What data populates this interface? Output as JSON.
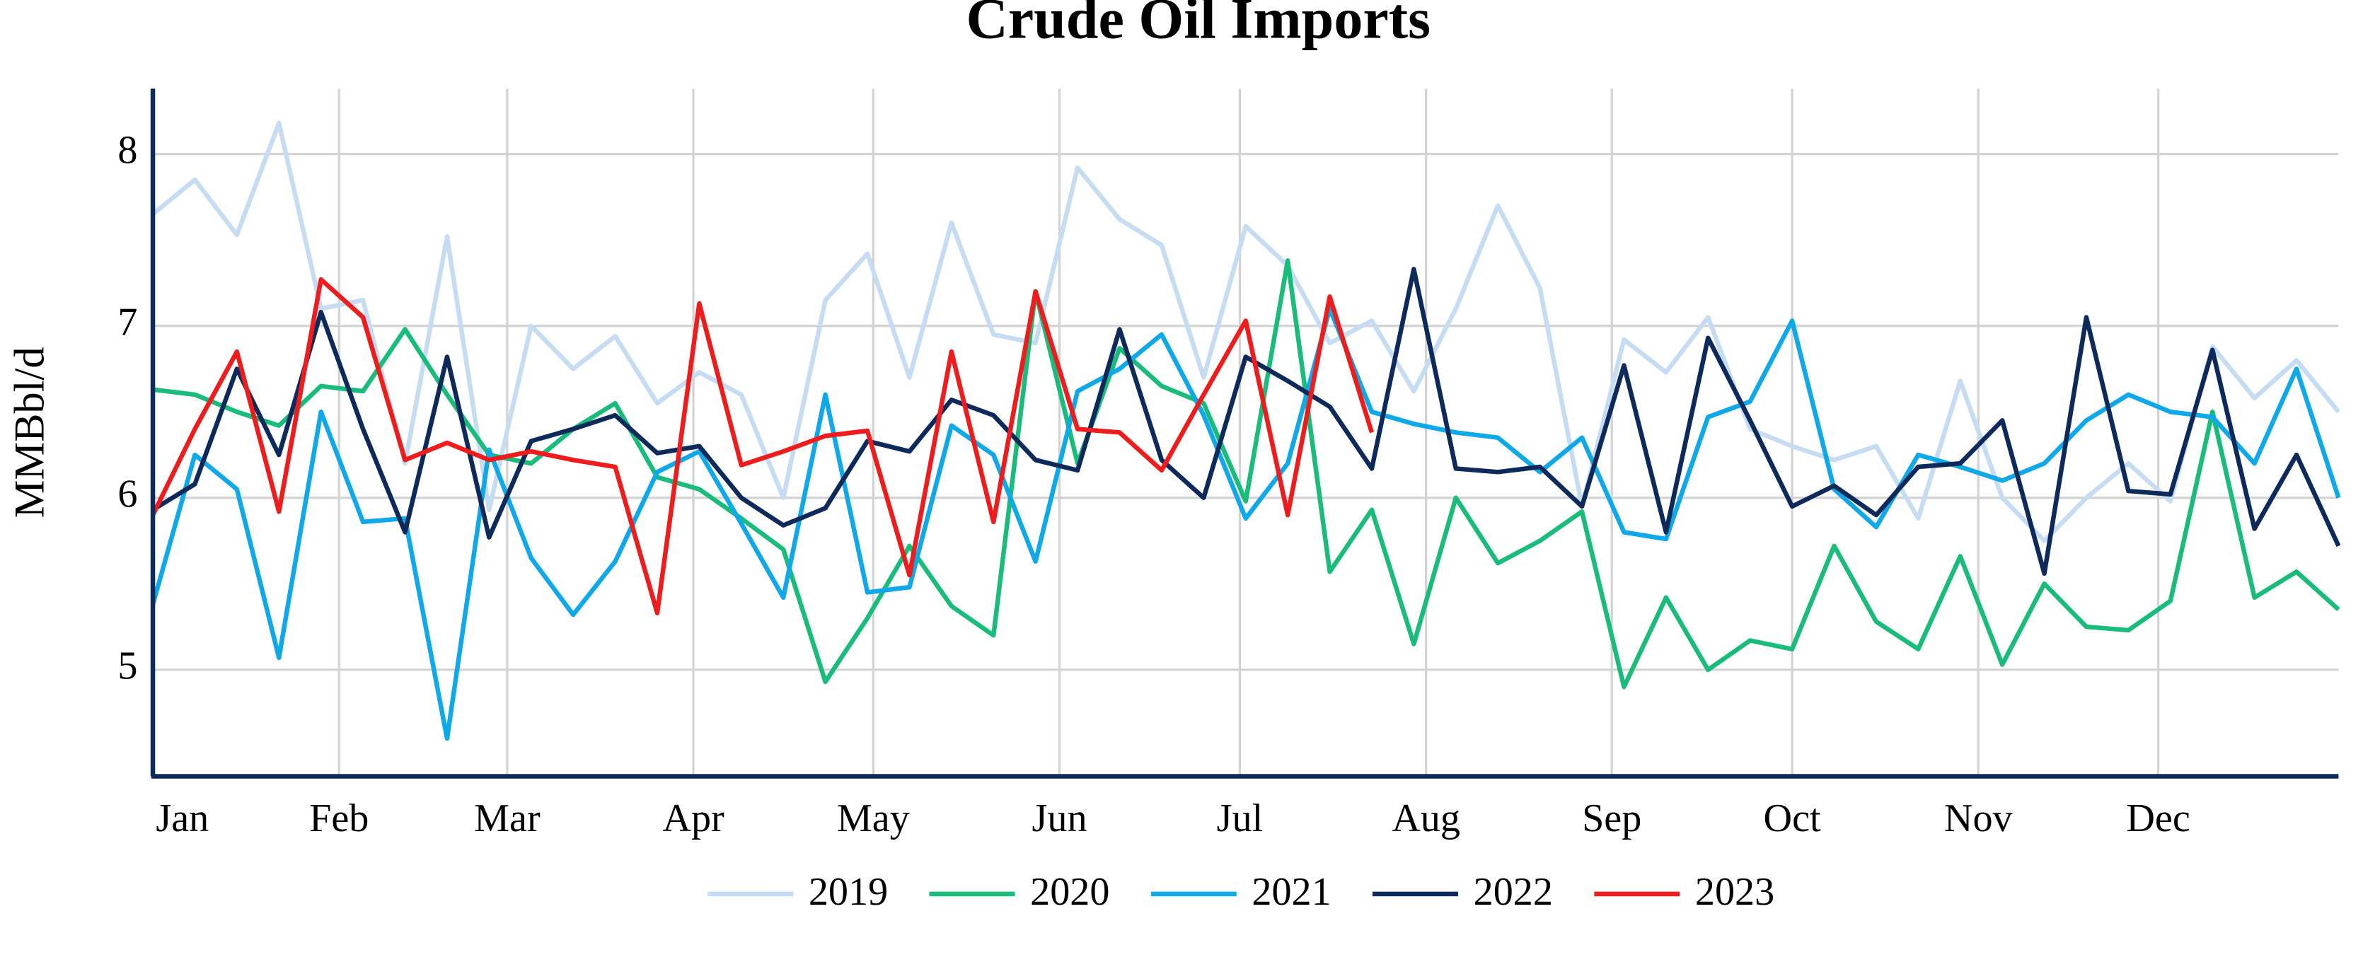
{
  "chart_data": {
    "type": "line",
    "title": "Crude Oil Imports",
    "y_label": "MMBbl/d",
    "x": [
      0,
      1,
      2,
      3,
      4,
      5,
      6,
      7,
      8,
      9,
      10,
      11,
      12,
      13,
      14,
      15,
      16,
      17,
      18,
      19,
      20,
      21,
      22,
      23,
      24,
      25,
      26,
      27,
      28,
      29,
      30,
      31,
      32,
      33,
      34,
      35,
      36,
      37,
      38,
      39,
      40,
      41,
      42,
      43,
      44,
      45,
      46,
      47,
      48,
      49,
      50,
      51,
      52
    ],
    "xlim": [
      0,
      52
    ],
    "xticks": [
      {
        "value": 0,
        "label": "Jan"
      },
      {
        "value": 4.43,
        "label": "Feb"
      },
      {
        "value": 8.43,
        "label": "Mar"
      },
      {
        "value": 12.86,
        "label": "Apr"
      },
      {
        "value": 17.14,
        "label": "May"
      },
      {
        "value": 21.57,
        "label": "Jun"
      },
      {
        "value": 25.86,
        "label": "Jul"
      },
      {
        "value": 30.29,
        "label": "Aug"
      },
      {
        "value": 34.71,
        "label": "Sep"
      },
      {
        "value": 39,
        "label": "Oct"
      },
      {
        "value": 43.43,
        "label": "Nov"
      },
      {
        "value": 47.71,
        "label": "Dec"
      }
    ],
    "ylim": [
      4.38,
      8.38
    ],
    "yticks": [
      5,
      6,
      7,
      8
    ],
    "grid": true,
    "legend": "bottom",
    "series": [
      {
        "name": "2019",
        "color": "#c5dcf3",
        "values": [
          7.65,
          7.85,
          7.53,
          8.18,
          7.1,
          7.15,
          6.2,
          7.52,
          5.93,
          7.0,
          6.75,
          6.94,
          6.55,
          6.73,
          6.6,
          6.0,
          7.15,
          7.42,
          6.7,
          7.6,
          6.95,
          6.9,
          7.92,
          7.62,
          7.47,
          6.7,
          7.58,
          7.35,
          6.9,
          7.03,
          6.62,
          7.1,
          7.7,
          7.22,
          5.95,
          6.92,
          6.73,
          7.05,
          6.4,
          6.3,
          6.22,
          6.3,
          5.88,
          6.68,
          6.0,
          5.75,
          6.0,
          6.2,
          5.98,
          6.88,
          6.58,
          6.8,
          6.5
        ]
      },
      {
        "name": "2020",
        "color": "#1abc7c",
        "values": [
          6.63,
          6.6,
          6.5,
          6.42,
          6.65,
          6.62,
          6.98,
          6.6,
          6.25,
          6.2,
          6.4,
          6.55,
          6.12,
          6.05,
          5.88,
          5.7,
          4.93,
          5.3,
          5.72,
          5.37,
          5.2,
          7.2,
          6.2,
          6.87,
          6.65,
          6.55,
          5.98,
          7.38,
          5.57,
          5.93,
          5.15,
          6.0,
          5.62,
          5.75,
          5.92,
          4.9,
          5.42,
          5.0,
          5.17,
          5.12,
          5.72,
          5.28,
          5.12,
          5.66,
          5.03,
          5.5,
          5.25,
          5.23,
          5.4,
          6.5,
          5.42,
          5.57,
          5.35
        ]
      },
      {
        "name": "2021",
        "color": "#0fa8e8",
        "values": [
          5.38,
          6.25,
          6.05,
          5.07,
          6.5,
          5.86,
          5.88,
          4.6,
          6.28,
          5.65,
          5.32,
          5.63,
          6.15,
          6.27,
          5.85,
          5.42,
          6.6,
          5.45,
          5.48,
          6.42,
          6.25,
          5.63,
          6.62,
          6.75,
          6.95,
          6.48,
          5.88,
          6.2,
          7.1,
          6.5,
          6.43,
          6.38,
          6.35,
          6.15,
          6.35,
          5.8,
          5.76,
          6.47,
          6.56,
          7.03,
          6.05,
          5.83,
          6.25,
          6.18,
          6.1,
          6.2,
          6.45,
          6.6,
          6.5,
          6.47,
          6.2,
          6.75,
          6.0
        ]
      },
      {
        "name": "2022",
        "color": "#0d2a5a",
        "values": [
          5.93,
          6.08,
          6.75,
          6.25,
          7.08,
          6.4,
          5.8,
          6.82,
          5.77,
          6.33,
          6.4,
          6.48,
          6.26,
          6.3,
          6.0,
          5.84,
          5.94,
          6.33,
          6.27,
          6.57,
          6.48,
          6.22,
          6.16,
          6.98,
          6.22,
          6.0,
          6.82,
          6.68,
          6.53,
          6.17,
          7.33,
          6.17,
          6.15,
          6.18,
          5.95,
          6.77,
          5.8,
          6.93,
          6.45,
          5.95,
          6.07,
          5.9,
          6.18,
          6.2,
          6.45,
          5.56,
          7.05,
          6.04,
          6.02,
          6.86,
          5.82,
          6.25,
          5.72
        ]
      },
      {
        "name": "2023",
        "color": "#ee1c1c",
        "values": [
          5.9,
          6.4,
          6.85,
          5.92,
          7.27,
          7.05,
          6.22,
          6.32,
          6.22,
          6.27,
          6.22,
          6.18,
          5.33,
          7.13,
          6.19,
          6.27,
          6.36,
          6.39,
          5.55,
          6.85,
          5.86,
          7.2,
          6.4,
          6.38,
          6.16,
          6.6,
          7.03,
          5.9,
          7.17,
          6.38,
          null,
          null,
          null,
          null,
          null,
          null,
          null,
          null,
          null,
          null,
          null,
          null,
          null,
          null,
          null,
          null,
          null,
          null,
          null,
          null,
          null,
          null,
          null
        ]
      }
    ]
  }
}
